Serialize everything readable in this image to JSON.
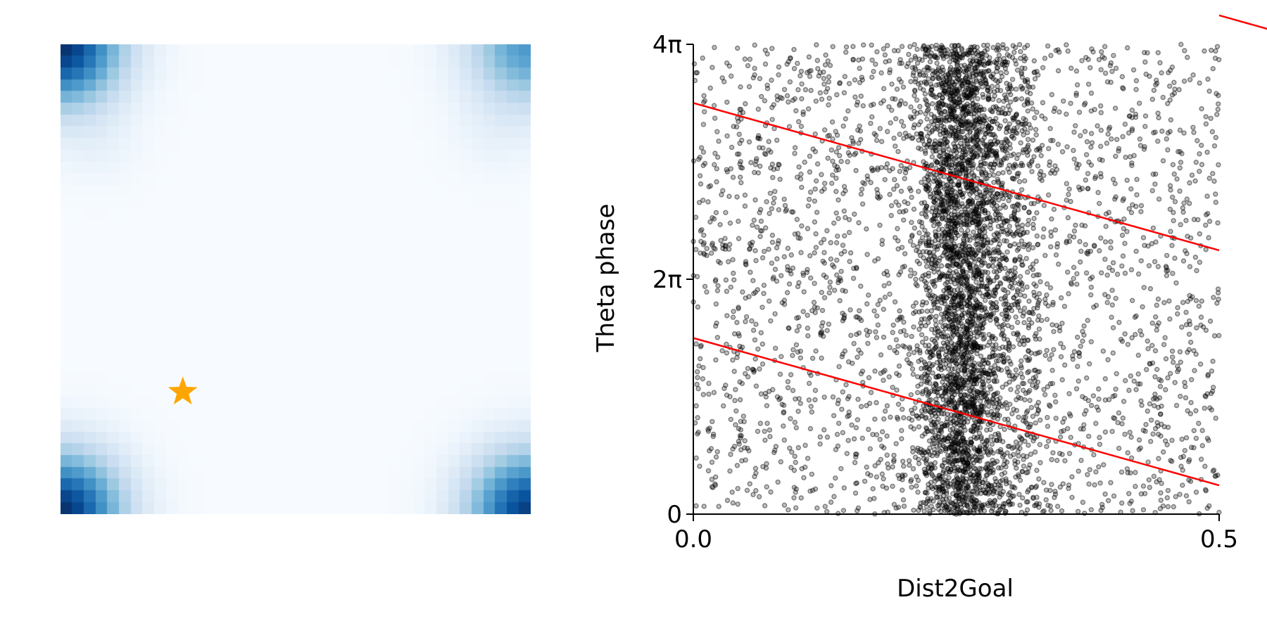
{
  "chart_data": [
    {
      "type": "heatmap",
      "colormap": "Blues",
      "grid_size": [
        40,
        40
      ],
      "high_value_regions": [
        "top-left",
        "top-right",
        "bottom-left",
        "bottom-right"
      ],
      "marker": {
        "shape": "star",
        "color": "#FFA500",
        "x": 0.26,
        "y": 0.26
      },
      "axes_visible": false
    },
    {
      "type": "scatter",
      "xlabel": "Dist2Goal",
      "ylabel": "Theta phase",
      "xlim": [
        0.0,
        0.5
      ],
      "ylim": [
        0,
        12.566
      ],
      "x_ticks": [
        {
          "value": 0.0,
          "label": "0.0"
        },
        {
          "value": 0.5,
          "label": "0.5"
        }
      ],
      "y_ticks": [
        {
          "value": 0,
          "label": "0"
        },
        {
          "value": 6.283,
          "label": "2π"
        },
        {
          "value": 12.566,
          "label": "4π"
        }
      ],
      "point_color": "#000000",
      "point_alpha": 0.45,
      "point_count": 6000,
      "dense_band_x": [
        0.22,
        0.33
      ],
      "dense_band_center": 0.255,
      "regression_lines": {
        "color": "#FF0000",
        "slope": -7.88,
        "intercepts": [
          4.71,
          10.996,
          17.28
        ]
      },
      "spines": [
        "left",
        "bottom"
      ]
    }
  ]
}
